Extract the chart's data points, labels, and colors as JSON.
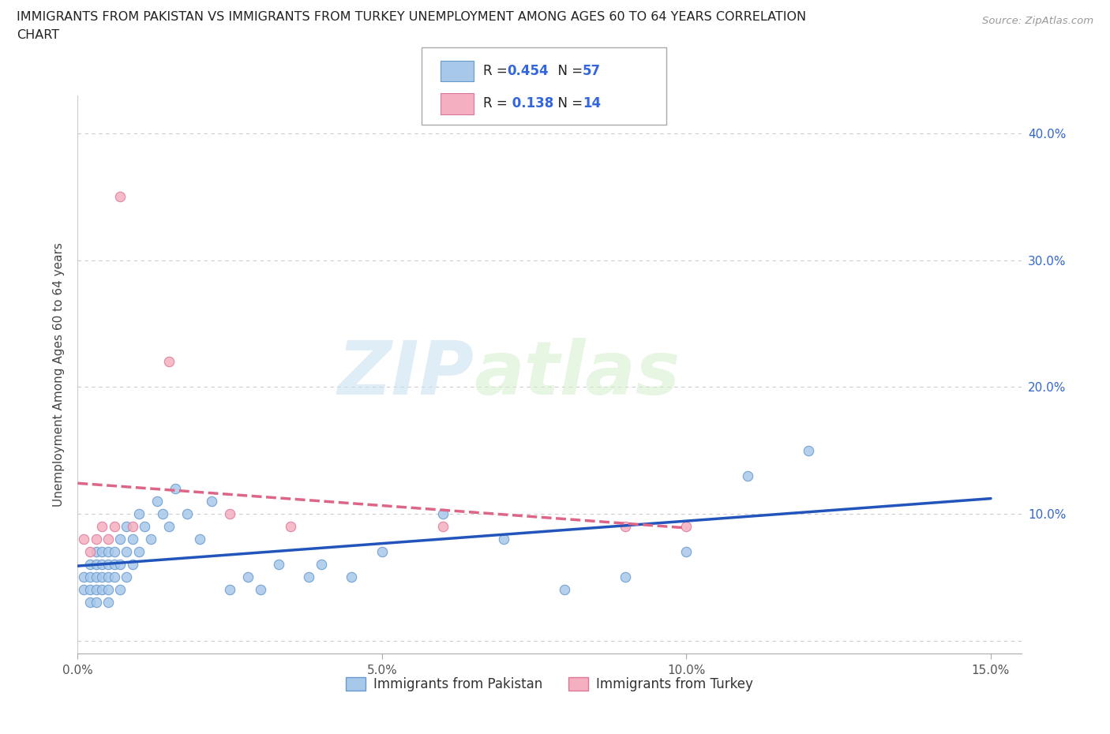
{
  "title_line1": "IMMIGRANTS FROM PAKISTAN VS IMMIGRANTS FROM TURKEY UNEMPLOYMENT AMONG AGES 60 TO 64 YEARS CORRELATION",
  "title_line2": "CHART",
  "source": "Source: ZipAtlas.com",
  "ylabel": "Unemployment Among Ages 60 to 64 years",
  "xlim": [
    0.0,
    0.155
  ],
  "ylim": [
    -0.01,
    0.43
  ],
  "xticks": [
    0.0,
    0.05,
    0.1,
    0.15
  ],
  "xticklabels": [
    "0.0%",
    "5.0%",
    "10.0%",
    "15.0%"
  ],
  "ytick_vals": [
    0.0,
    0.1,
    0.2,
    0.3,
    0.4
  ],
  "yticklabels_right": [
    "",
    "10.0%",
    "20.0%",
    "30.0%",
    "40.0%"
  ],
  "pakistan_color": "#a8c8ea",
  "turkey_color": "#f4afc0",
  "pakistan_edge": "#6699cc",
  "turkey_edge": "#dd7799",
  "pakistan_line_color": "#2255bb",
  "turkey_line_color": "#dd6688",
  "R_pakistan": 0.454,
  "N_pakistan": 57,
  "R_turkey": 0.138,
  "N_turkey": 14,
  "watermark_zip": "ZIP",
  "watermark_atlas": "atlas",
  "pakistan_x": [
    0.001,
    0.001,
    0.002,
    0.002,
    0.002,
    0.002,
    0.003,
    0.003,
    0.003,
    0.003,
    0.003,
    0.004,
    0.004,
    0.004,
    0.004,
    0.005,
    0.005,
    0.005,
    0.005,
    0.005,
    0.006,
    0.006,
    0.006,
    0.007,
    0.007,
    0.007,
    0.008,
    0.008,
    0.008,
    0.009,
    0.009,
    0.01,
    0.01,
    0.011,
    0.012,
    0.013,
    0.014,
    0.015,
    0.016,
    0.018,
    0.02,
    0.022,
    0.025,
    0.028,
    0.03,
    0.033,
    0.038,
    0.04,
    0.045,
    0.05,
    0.06,
    0.07,
    0.08,
    0.09,
    0.1,
    0.11,
    0.12
  ],
  "pakistan_y": [
    0.04,
    0.05,
    0.03,
    0.04,
    0.05,
    0.06,
    0.03,
    0.04,
    0.05,
    0.06,
    0.07,
    0.04,
    0.05,
    0.06,
    0.07,
    0.03,
    0.04,
    0.05,
    0.06,
    0.07,
    0.05,
    0.06,
    0.07,
    0.04,
    0.06,
    0.08,
    0.05,
    0.07,
    0.09,
    0.06,
    0.08,
    0.07,
    0.1,
    0.09,
    0.08,
    0.11,
    0.1,
    0.09,
    0.12,
    0.1,
    0.08,
    0.11,
    0.04,
    0.05,
    0.04,
    0.06,
    0.05,
    0.06,
    0.05,
    0.07,
    0.1,
    0.08,
    0.04,
    0.05,
    0.07,
    0.13,
    0.15
  ],
  "turkey_x": [
    0.001,
    0.002,
    0.003,
    0.004,
    0.005,
    0.006,
    0.007,
    0.009,
    0.015,
    0.025,
    0.035,
    0.06,
    0.09,
    0.1
  ],
  "turkey_y": [
    0.08,
    0.07,
    0.08,
    0.09,
    0.08,
    0.09,
    0.35,
    0.09,
    0.22,
    0.1,
    0.09,
    0.09,
    0.09,
    0.09
  ],
  "background_color": "#ffffff",
  "grid_color": "#cccccc",
  "legend_label1": "Immigrants from Pakistan",
  "legend_label2": "Immigrants from Turkey"
}
